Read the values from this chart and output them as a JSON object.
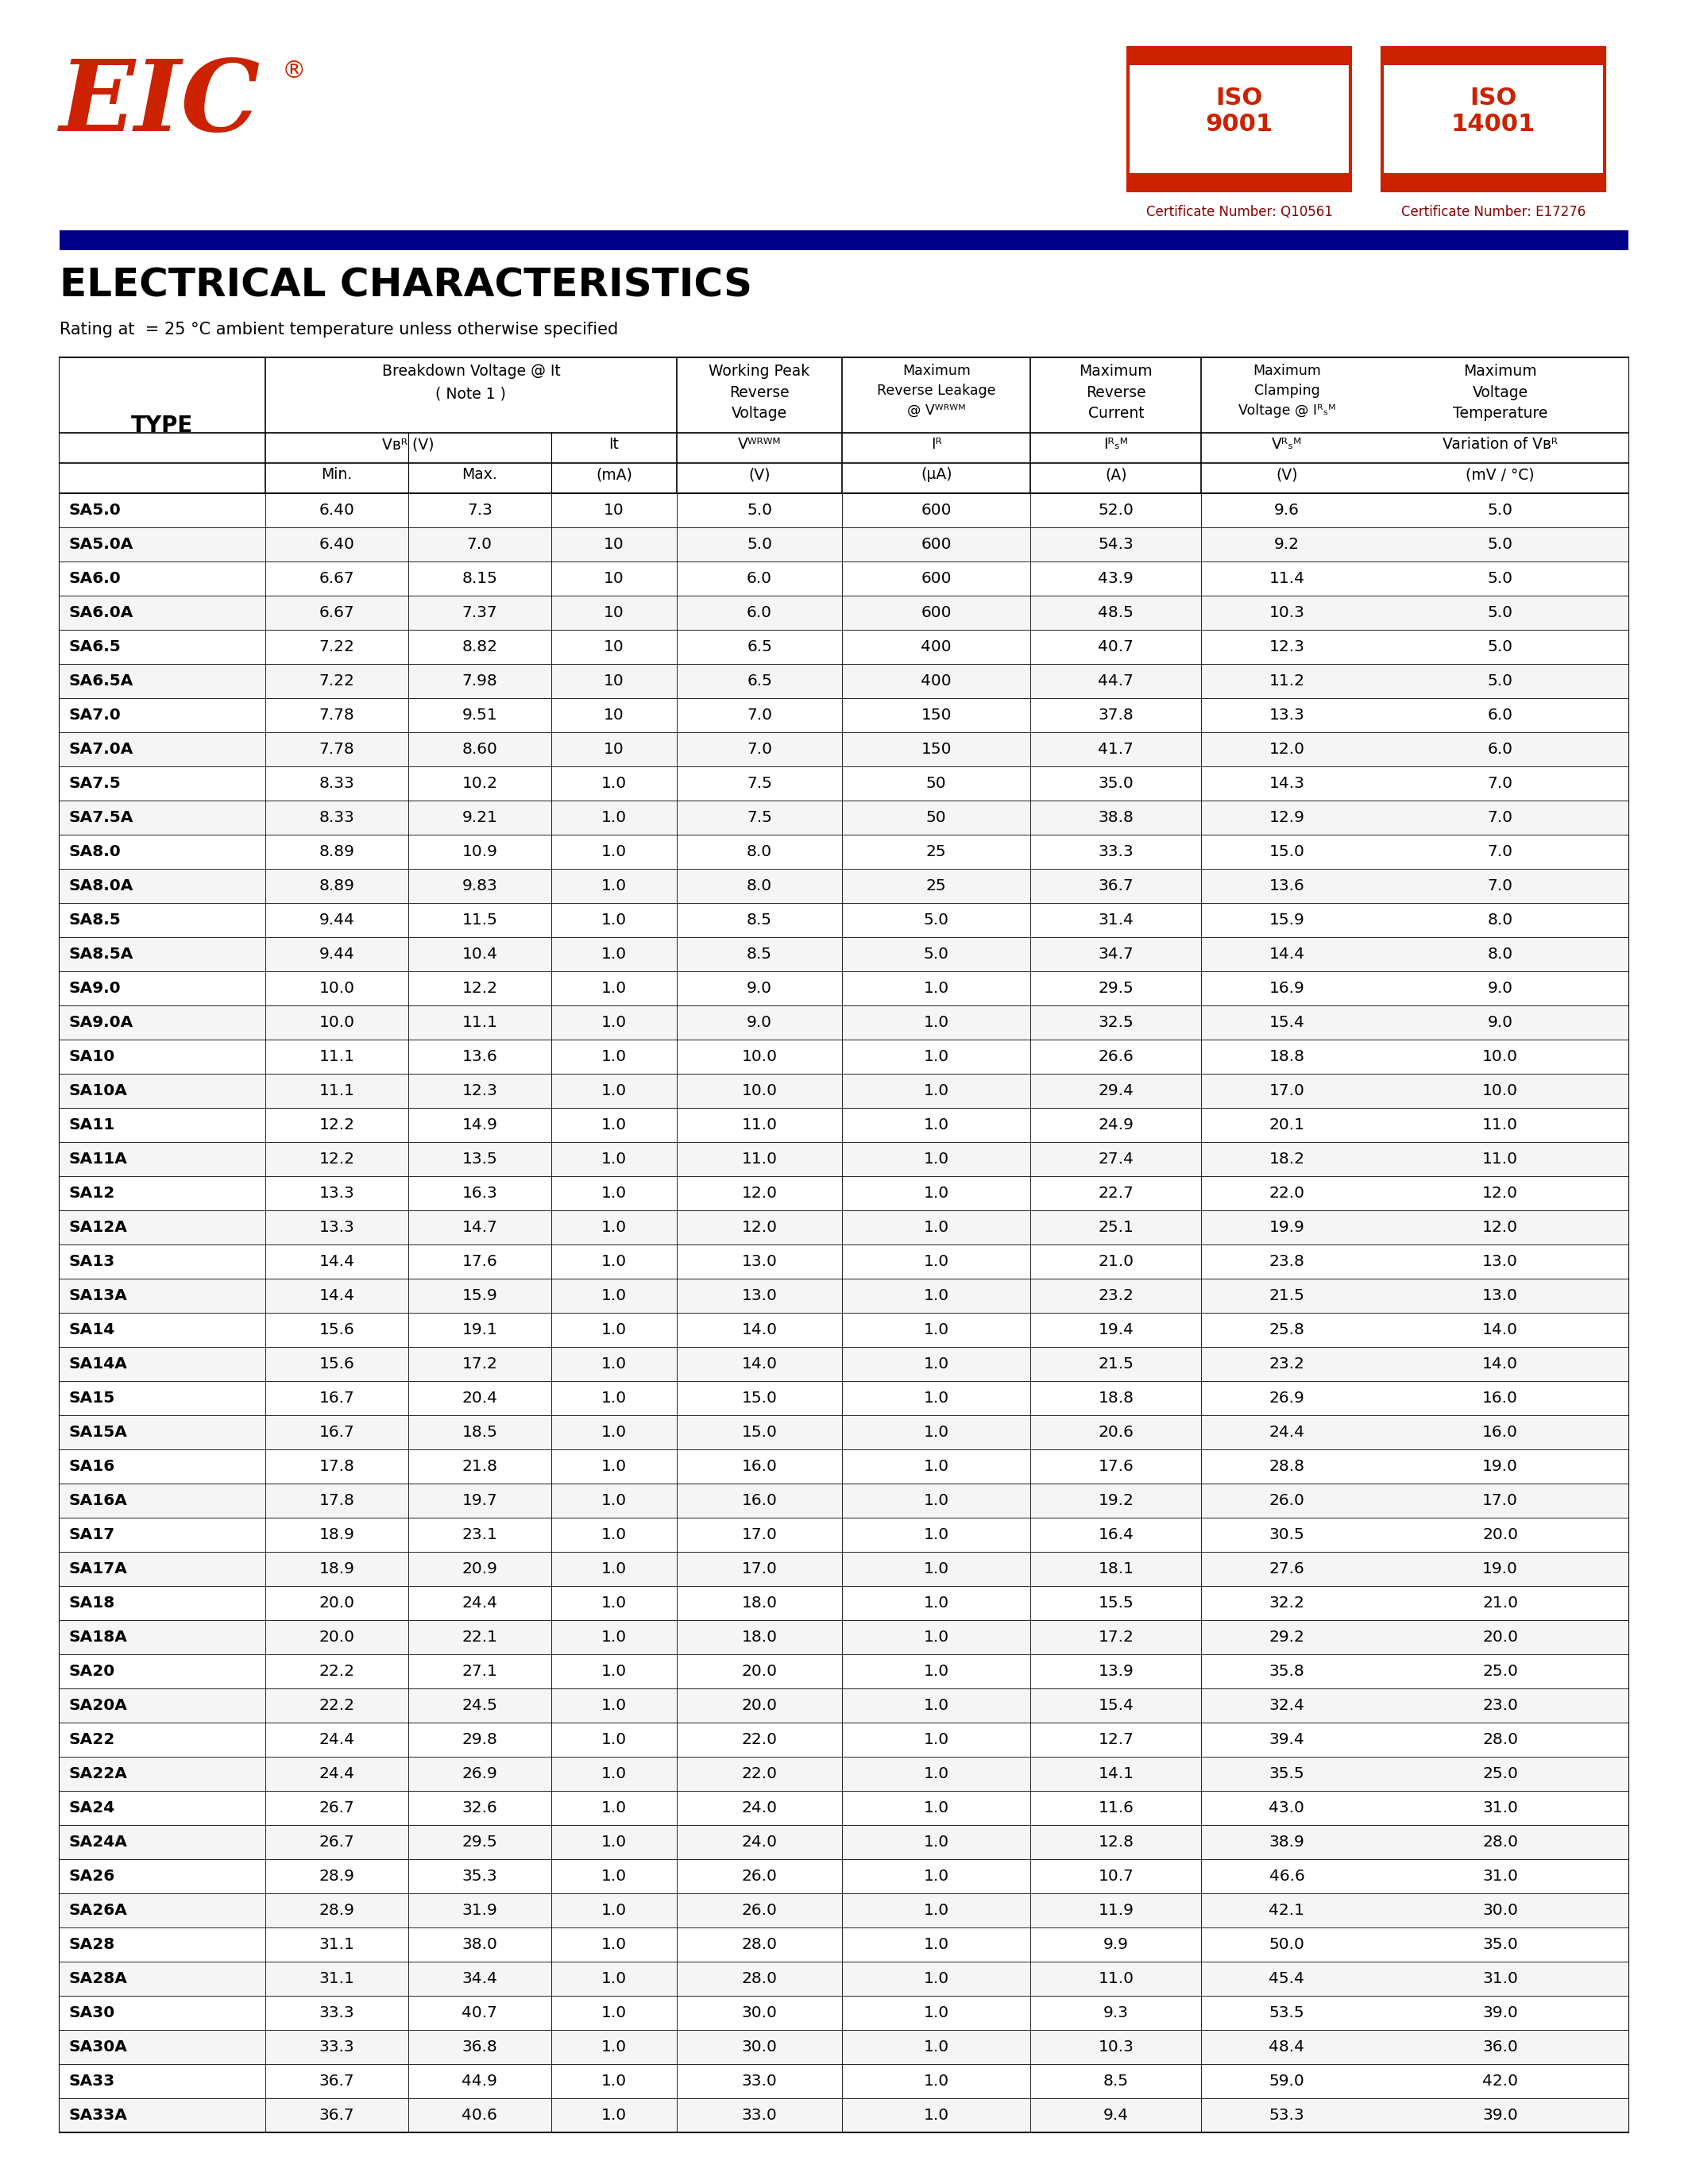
{
  "title": "ELECTRICAL CHARACTERISTICS",
  "subtitle": "Rating at  = 25 °C ambient temperature unless otherwise specified",
  "rows": [
    [
      "SA5.0",
      "6.40",
      "7.3",
      "10",
      "5.0",
      "600",
      "52.0",
      "9.6",
      "5.0"
    ],
    [
      "SA5.0A",
      "6.40",
      "7.0",
      "10",
      "5.0",
      "600",
      "54.3",
      "9.2",
      "5.0"
    ],
    [
      "SA6.0",
      "6.67",
      "8.15",
      "10",
      "6.0",
      "600",
      "43.9",
      "11.4",
      "5.0"
    ],
    [
      "SA6.0A",
      "6.67",
      "7.37",
      "10",
      "6.0",
      "600",
      "48.5",
      "10.3",
      "5.0"
    ],
    [
      "SA6.5",
      "7.22",
      "8.82",
      "10",
      "6.5",
      "400",
      "40.7",
      "12.3",
      "5.0"
    ],
    [
      "SA6.5A",
      "7.22",
      "7.98",
      "10",
      "6.5",
      "400",
      "44.7",
      "11.2",
      "5.0"
    ],
    [
      "SA7.0",
      "7.78",
      "9.51",
      "10",
      "7.0",
      "150",
      "37.8",
      "13.3",
      "6.0"
    ],
    [
      "SA7.0A",
      "7.78",
      "8.60",
      "10",
      "7.0",
      "150",
      "41.7",
      "12.0",
      "6.0"
    ],
    [
      "SA7.5",
      "8.33",
      "10.2",
      "1.0",
      "7.5",
      "50",
      "35.0",
      "14.3",
      "7.0"
    ],
    [
      "SA7.5A",
      "8.33",
      "9.21",
      "1.0",
      "7.5",
      "50",
      "38.8",
      "12.9",
      "7.0"
    ],
    [
      "SA8.0",
      "8.89",
      "10.9",
      "1.0",
      "8.0",
      "25",
      "33.3",
      "15.0",
      "7.0"
    ],
    [
      "SA8.0A",
      "8.89",
      "9.83",
      "1.0",
      "8.0",
      "25",
      "36.7",
      "13.6",
      "7.0"
    ],
    [
      "SA8.5",
      "9.44",
      "11.5",
      "1.0",
      "8.5",
      "5.0",
      "31.4",
      "15.9",
      "8.0"
    ],
    [
      "SA8.5A",
      "9.44",
      "10.4",
      "1.0",
      "8.5",
      "5.0",
      "34.7",
      "14.4",
      "8.0"
    ],
    [
      "SA9.0",
      "10.0",
      "12.2",
      "1.0",
      "9.0",
      "1.0",
      "29.5",
      "16.9",
      "9.0"
    ],
    [
      "SA9.0A",
      "10.0",
      "11.1",
      "1.0",
      "9.0",
      "1.0",
      "32.5",
      "15.4",
      "9.0"
    ],
    [
      "SA10",
      "11.1",
      "13.6",
      "1.0",
      "10.0",
      "1.0",
      "26.6",
      "18.8",
      "10.0"
    ],
    [
      "SA10A",
      "11.1",
      "12.3",
      "1.0",
      "10.0",
      "1.0",
      "29.4",
      "17.0",
      "10.0"
    ],
    [
      "SA11",
      "12.2",
      "14.9",
      "1.0",
      "11.0",
      "1.0",
      "24.9",
      "20.1",
      "11.0"
    ],
    [
      "SA11A",
      "12.2",
      "13.5",
      "1.0",
      "11.0",
      "1.0",
      "27.4",
      "18.2",
      "11.0"
    ],
    [
      "SA12",
      "13.3",
      "16.3",
      "1.0",
      "12.0",
      "1.0",
      "22.7",
      "22.0",
      "12.0"
    ],
    [
      "SA12A",
      "13.3",
      "14.7",
      "1.0",
      "12.0",
      "1.0",
      "25.1",
      "19.9",
      "12.0"
    ],
    [
      "SA13",
      "14.4",
      "17.6",
      "1.0",
      "13.0",
      "1.0",
      "21.0",
      "23.8",
      "13.0"
    ],
    [
      "SA13A",
      "14.4",
      "15.9",
      "1.0",
      "13.0",
      "1.0",
      "23.2",
      "21.5",
      "13.0"
    ],
    [
      "SA14",
      "15.6",
      "19.1",
      "1.0",
      "14.0",
      "1.0",
      "19.4",
      "25.8",
      "14.0"
    ],
    [
      "SA14A",
      "15.6",
      "17.2",
      "1.0",
      "14.0",
      "1.0",
      "21.5",
      "23.2",
      "14.0"
    ],
    [
      "SA15",
      "16.7",
      "20.4",
      "1.0",
      "15.0",
      "1.0",
      "18.8",
      "26.9",
      "16.0"
    ],
    [
      "SA15A",
      "16.7",
      "18.5",
      "1.0",
      "15.0",
      "1.0",
      "20.6",
      "24.4",
      "16.0"
    ],
    [
      "SA16",
      "17.8",
      "21.8",
      "1.0",
      "16.0",
      "1.0",
      "17.6",
      "28.8",
      "19.0"
    ],
    [
      "SA16A",
      "17.8",
      "19.7",
      "1.0",
      "16.0",
      "1.0",
      "19.2",
      "26.0",
      "17.0"
    ],
    [
      "SA17",
      "18.9",
      "23.1",
      "1.0",
      "17.0",
      "1.0",
      "16.4",
      "30.5",
      "20.0"
    ],
    [
      "SA17A",
      "18.9",
      "20.9",
      "1.0",
      "17.0",
      "1.0",
      "18.1",
      "27.6",
      "19.0"
    ],
    [
      "SA18",
      "20.0",
      "24.4",
      "1.0",
      "18.0",
      "1.0",
      "15.5",
      "32.2",
      "21.0"
    ],
    [
      "SA18A",
      "20.0",
      "22.1",
      "1.0",
      "18.0",
      "1.0",
      "17.2",
      "29.2",
      "20.0"
    ],
    [
      "SA20",
      "22.2",
      "27.1",
      "1.0",
      "20.0",
      "1.0",
      "13.9",
      "35.8",
      "25.0"
    ],
    [
      "SA20A",
      "22.2",
      "24.5",
      "1.0",
      "20.0",
      "1.0",
      "15.4",
      "32.4",
      "23.0"
    ],
    [
      "SA22",
      "24.4",
      "29.8",
      "1.0",
      "22.0",
      "1.0",
      "12.7",
      "39.4",
      "28.0"
    ],
    [
      "SA22A",
      "24.4",
      "26.9",
      "1.0",
      "22.0",
      "1.0",
      "14.1",
      "35.5",
      "25.0"
    ],
    [
      "SA24",
      "26.7",
      "32.6",
      "1.0",
      "24.0",
      "1.0",
      "11.6",
      "43.0",
      "31.0"
    ],
    [
      "SA24A",
      "26.7",
      "29.5",
      "1.0",
      "24.0",
      "1.0",
      "12.8",
      "38.9",
      "28.0"
    ],
    [
      "SA26",
      "28.9",
      "35.3",
      "1.0",
      "26.0",
      "1.0",
      "10.7",
      "46.6",
      "31.0"
    ],
    [
      "SA26A",
      "28.9",
      "31.9",
      "1.0",
      "26.0",
      "1.0",
      "11.9",
      "42.1",
      "30.0"
    ],
    [
      "SA28",
      "31.1",
      "38.0",
      "1.0",
      "28.0",
      "1.0",
      "9.9",
      "50.0",
      "35.0"
    ],
    [
      "SA28A",
      "31.1",
      "34.4",
      "1.0",
      "28.0",
      "1.0",
      "11.0",
      "45.4",
      "31.0"
    ],
    [
      "SA30",
      "33.3",
      "40.7",
      "1.0",
      "30.0",
      "1.0",
      "9.3",
      "53.5",
      "39.0"
    ],
    [
      "SA30A",
      "33.3",
      "36.8",
      "1.0",
      "30.0",
      "1.0",
      "10.3",
      "48.4",
      "36.0"
    ],
    [
      "SA33",
      "36.7",
      "44.9",
      "1.0",
      "33.0",
      "1.0",
      "8.5",
      "59.0",
      "42.0"
    ],
    [
      "SA33A",
      "36.7",
      "40.6",
      "1.0",
      "33.0",
      "1.0",
      "9.4",
      "53.3",
      "39.0"
    ]
  ],
  "logo_color": "#cc2200",
  "blue_bar_color": "#00008B",
  "cert1_text": "Certificate Number: Q10561",
  "cert2_text": "Certificate Number: E17276"
}
